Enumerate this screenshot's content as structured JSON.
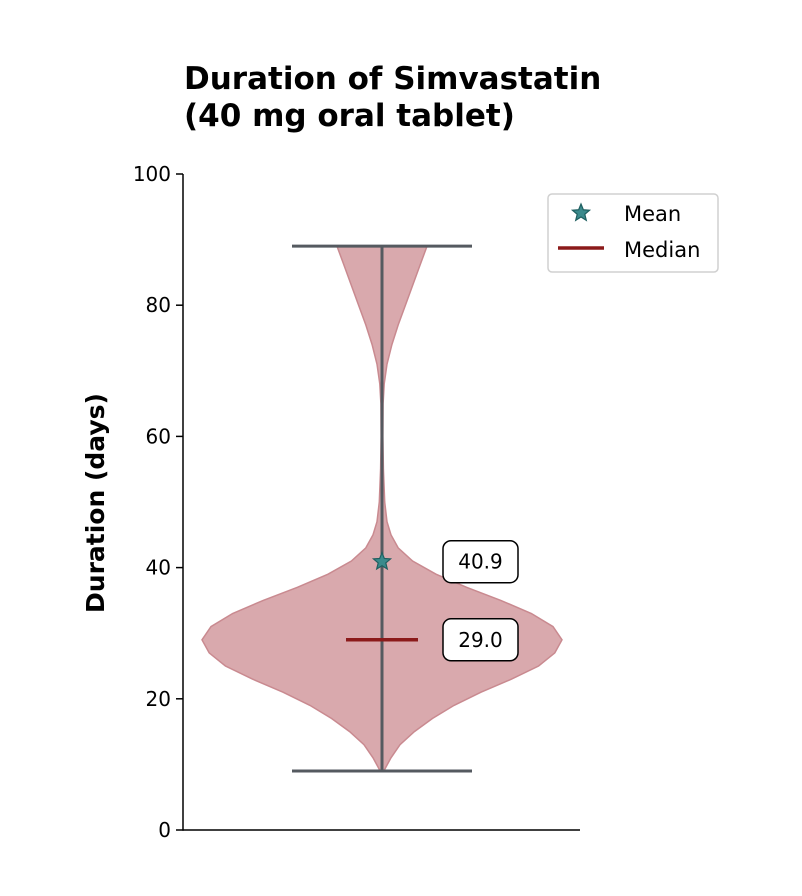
{
  "chart_data": {
    "type": "violin",
    "title_lines": [
      "Duration of Simvastatin",
      "(40 mg oral tablet)"
    ],
    "xlabel": "",
    "ylabel": "Duration (days)",
    "ylim": [
      0,
      100
    ],
    "yticks": [
      0,
      20,
      40,
      60,
      80,
      100
    ],
    "grid": false,
    "legend_position": "top-right",
    "legend": [
      {
        "label": "Mean",
        "marker": "star-icon",
        "color": "#3a8a8c"
      },
      {
        "label": "Median",
        "marker": "line",
        "color": "#8b1a1a"
      }
    ],
    "series": [
      {
        "min": 9,
        "max": 89,
        "mean": 40.9,
        "median": 29.0,
        "mean_label": "40.9",
        "median_label": "29.0",
        "density": [
          [
            9,
            0.01
          ],
          [
            11,
            0.05
          ],
          [
            13,
            0.1
          ],
          [
            15,
            0.18
          ],
          [
            17,
            0.28
          ],
          [
            19,
            0.4
          ],
          [
            21,
            0.55
          ],
          [
            23,
            0.72
          ],
          [
            25,
            0.87
          ],
          [
            27,
            0.96
          ],
          [
            29,
            1.0
          ],
          [
            31,
            0.95
          ],
          [
            33,
            0.83
          ],
          [
            35,
            0.66
          ],
          [
            37,
            0.47
          ],
          [
            39,
            0.3
          ],
          [
            41,
            0.17
          ],
          [
            43,
            0.09
          ],
          [
            45,
            0.05
          ],
          [
            47,
            0.028
          ],
          [
            50,
            0.015
          ],
          [
            55,
            0.008
          ],
          [
            60,
            0.005
          ],
          [
            65,
            0.006
          ],
          [
            68,
            0.012
          ],
          [
            71,
            0.028
          ],
          [
            74,
            0.055
          ],
          [
            77,
            0.09
          ],
          [
            80,
            0.13
          ],
          [
            83,
            0.17
          ],
          [
            86,
            0.21
          ],
          [
            89,
            0.25
          ]
        ]
      }
    ],
    "colors": {
      "violin_fill": "#d9a9ad",
      "violin_edge": "#c98a90",
      "whisker": "#555a60",
      "median": "#8b1a1a",
      "mean": "#3a8a8c",
      "axis": "#000000"
    }
  }
}
